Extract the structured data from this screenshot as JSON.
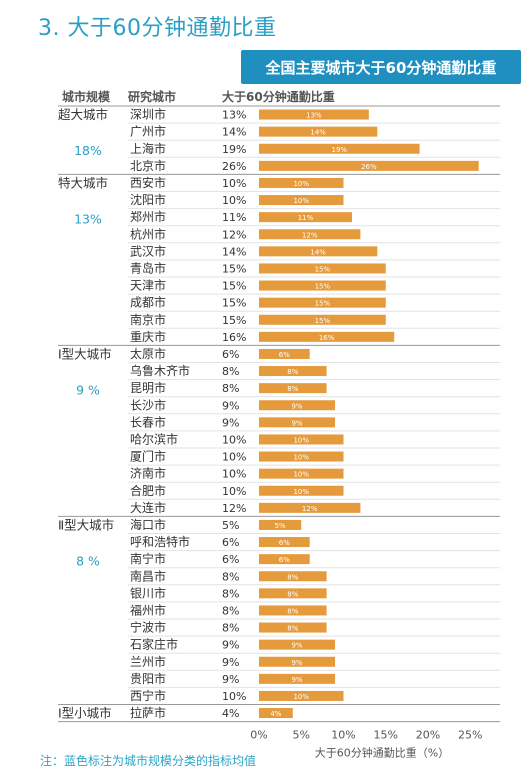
{
  "heading": "3. 大于60分钟通勤比重",
  "chart_title": "全国主要城市大于60分钟通勤比重",
  "headers": {
    "tier": "城市规模",
    "city": "研究城市",
    "value": "大于60分钟通勤比重"
  },
  "footnote": "注：蓝色标注为城市规模分类的指标均值",
  "colors": {
    "bar": "#e59a3c",
    "accent": "#2a9fc4",
    "title_bg": "#1f8fbf"
  },
  "chart_data": {
    "type": "bar",
    "orientation": "horizontal",
    "xlabel": "大于60分钟通勤比重（%）",
    "xlim": [
      0,
      25
    ],
    "xticks": [
      "0%",
      "5%",
      "10%",
      "15%",
      "20%",
      "25%"
    ],
    "xtick_values": [
      0,
      5,
      10,
      15,
      20,
      25
    ],
    "categories": [
      "深圳市",
      "广州市",
      "上海市",
      "北京市",
      "西安市",
      "沈阳市",
      "郑州市",
      "杭州市",
      "武汉市",
      "青岛市",
      "天津市",
      "成都市",
      "南京市",
      "重庆市",
      "太原市",
      "乌鲁木齐市",
      "昆明市",
      "长沙市",
      "长春市",
      "哈尔滨市",
      "厦门市",
      "济南市",
      "合肥市",
      "大连市",
      "海口市",
      "呼和浩特市",
      "南宁市",
      "南昌市",
      "银川市",
      "福州市",
      "宁波市",
      "石家庄市",
      "兰州市",
      "贵阳市",
      "西宁市",
      "拉萨市"
    ],
    "values": [
      13,
      14,
      19,
      26,
      10,
      10,
      11,
      12,
      14,
      15,
      15,
      15,
      15,
      16,
      6,
      8,
      8,
      9,
      9,
      10,
      10,
      10,
      10,
      12,
      5,
      6,
      6,
      8,
      8,
      8,
      8,
      9,
      9,
      9,
      10,
      4
    ],
    "value_labels": [
      "13%",
      "14%",
      "19%",
      "26%",
      "10%",
      "10%",
      "11%",
      "12%",
      "14%",
      "15%",
      "15%",
      "15%",
      "15%",
      "16%",
      "6%",
      "8%",
      "8%",
      "9%",
      "9%",
      "10%",
      "10%",
      "10%",
      "10%",
      "12%",
      "5%",
      "6%",
      "6%",
      "8%",
      "8%",
      "8%",
      "8%",
      "9%",
      "9%",
      "9%",
      "10%",
      "4%"
    ],
    "groups": [
      {
        "name": "超大城市",
        "mean": "18%",
        "start": 0,
        "end": 3
      },
      {
        "name": "特大城市",
        "mean": "13%",
        "start": 4,
        "end": 13
      },
      {
        "name": "Ⅰ型大城市",
        "mean": "9 %",
        "start": 14,
        "end": 23
      },
      {
        "name": "Ⅱ型大城市",
        "mean": "8 %",
        "start": 24,
        "end": 34
      },
      {
        "name": "Ⅰ型小城市",
        "mean": "",
        "start": 35,
        "end": 35
      }
    ]
  }
}
